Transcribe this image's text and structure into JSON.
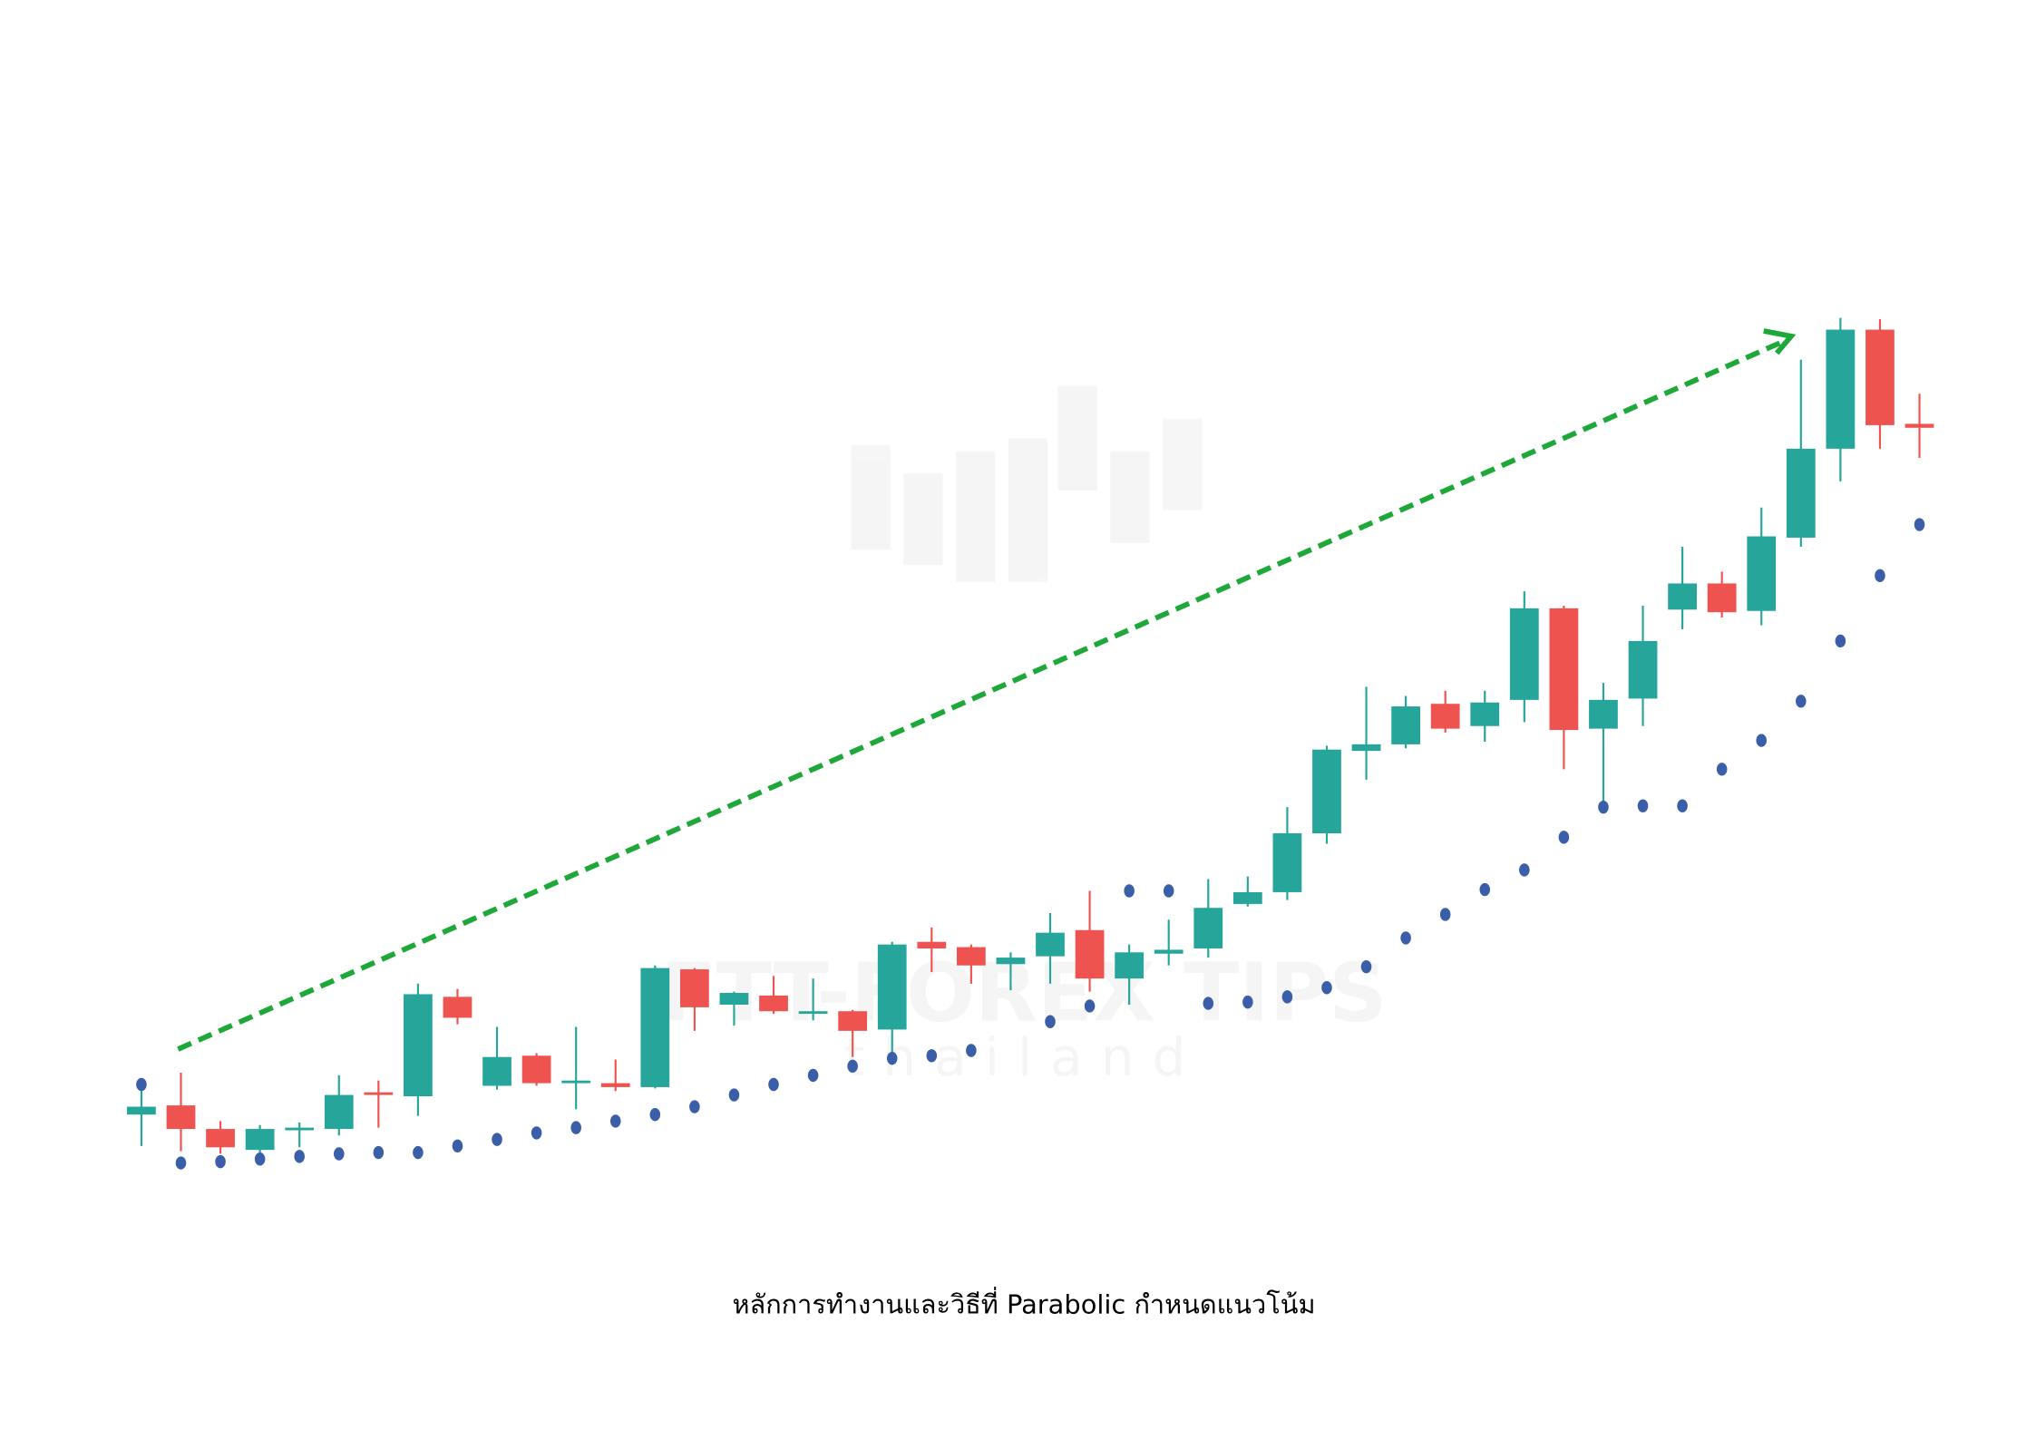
{
  "chart_data": {
    "type": "candlestick",
    "caption": "หลักการทำงานและวิธีที่ Parabolic กำหนดแนวโน้ม",
    "watermark": [
      "FTT-FOREX TIPS",
      "thailand"
    ],
    "open": [
      148,
      155,
      137,
      121,
      136,
      137,
      165,
      162,
      238,
      170,
      193,
      172,
      172,
      169,
      259,
      232,
      239,
      225,
      227,
      213,
      280,
      276,
      263,
      269,
      289,
      252,
      271,
      275,
      309,
      318,
      363,
      426,
      431,
      462,
      445,
      465,
      535,
      443,
      466,
      534,
      554,
      533,
      589,
      657,
      748,
      676
    ],
    "high": [
      168,
      180,
      143,
      140,
      142,
      178,
      174,
      248,
      244,
      215,
      195,
      215,
      190,
      262,
      260,
      242,
      254,
      252,
      228,
      280,
      291,
      278,
      272,
      302,
      319,
      278,
      297,
      328,
      330,
      383,
      430,
      475,
      468,
      472,
      472,
      548,
      537,
      478,
      537,
      582,
      563,
      612,
      725,
      757,
      756,
      699
    ],
    "low": [
      124,
      120,
      118,
      118,
      123,
      132,
      138,
      147,
      217,
      167,
      170,
      152,
      166,
      168,
      212,
      216,
      225,
      220,
      192,
      190,
      257,
      248,
      243,
      248,
      242,
      232,
      262,
      268,
      307,
      312,
      355,
      404,
      428,
      440,
      433,
      448,
      412,
      385,
      445,
      519,
      528,
      522,
      582,
      632,
      657,
      650
    ],
    "close": [
      154,
      137,
      123,
      137,
      138,
      163,
      163,
      240,
      222,
      192,
      172,
      174,
      169,
      260,
      230,
      241,
      227,
      227,
      212,
      278,
      275,
      262,
      268,
      287,
      252,
      272,
      274,
      306,
      318,
      363,
      427,
      431,
      460,
      443,
      463,
      535,
      442,
      465,
      510,
      554,
      532,
      590,
      657,
      748,
      675,
      673
    ],
    "sar": [
      171,
      111,
      112,
      114,
      116,
      118,
      119,
      119,
      124,
      129,
      134,
      138,
      143,
      148,
      154,
      163,
      171,
      178,
      185,
      191,
      193,
      197,
      null,
      219,
      231,
      319,
      319,
      233,
      234,
      238,
      245,
      261,
      283,
      301,
      320,
      335,
      360,
      383,
      384,
      384,
      412,
      434,
      464,
      510,
      560,
      599
    ],
    "up_color": "#26a69a",
    "down_color": "#ef5350",
    "sar_color": "#3b5ea8",
    "trend_color": "#1fa83a",
    "ylim": [
      50,
      800
    ]
  }
}
